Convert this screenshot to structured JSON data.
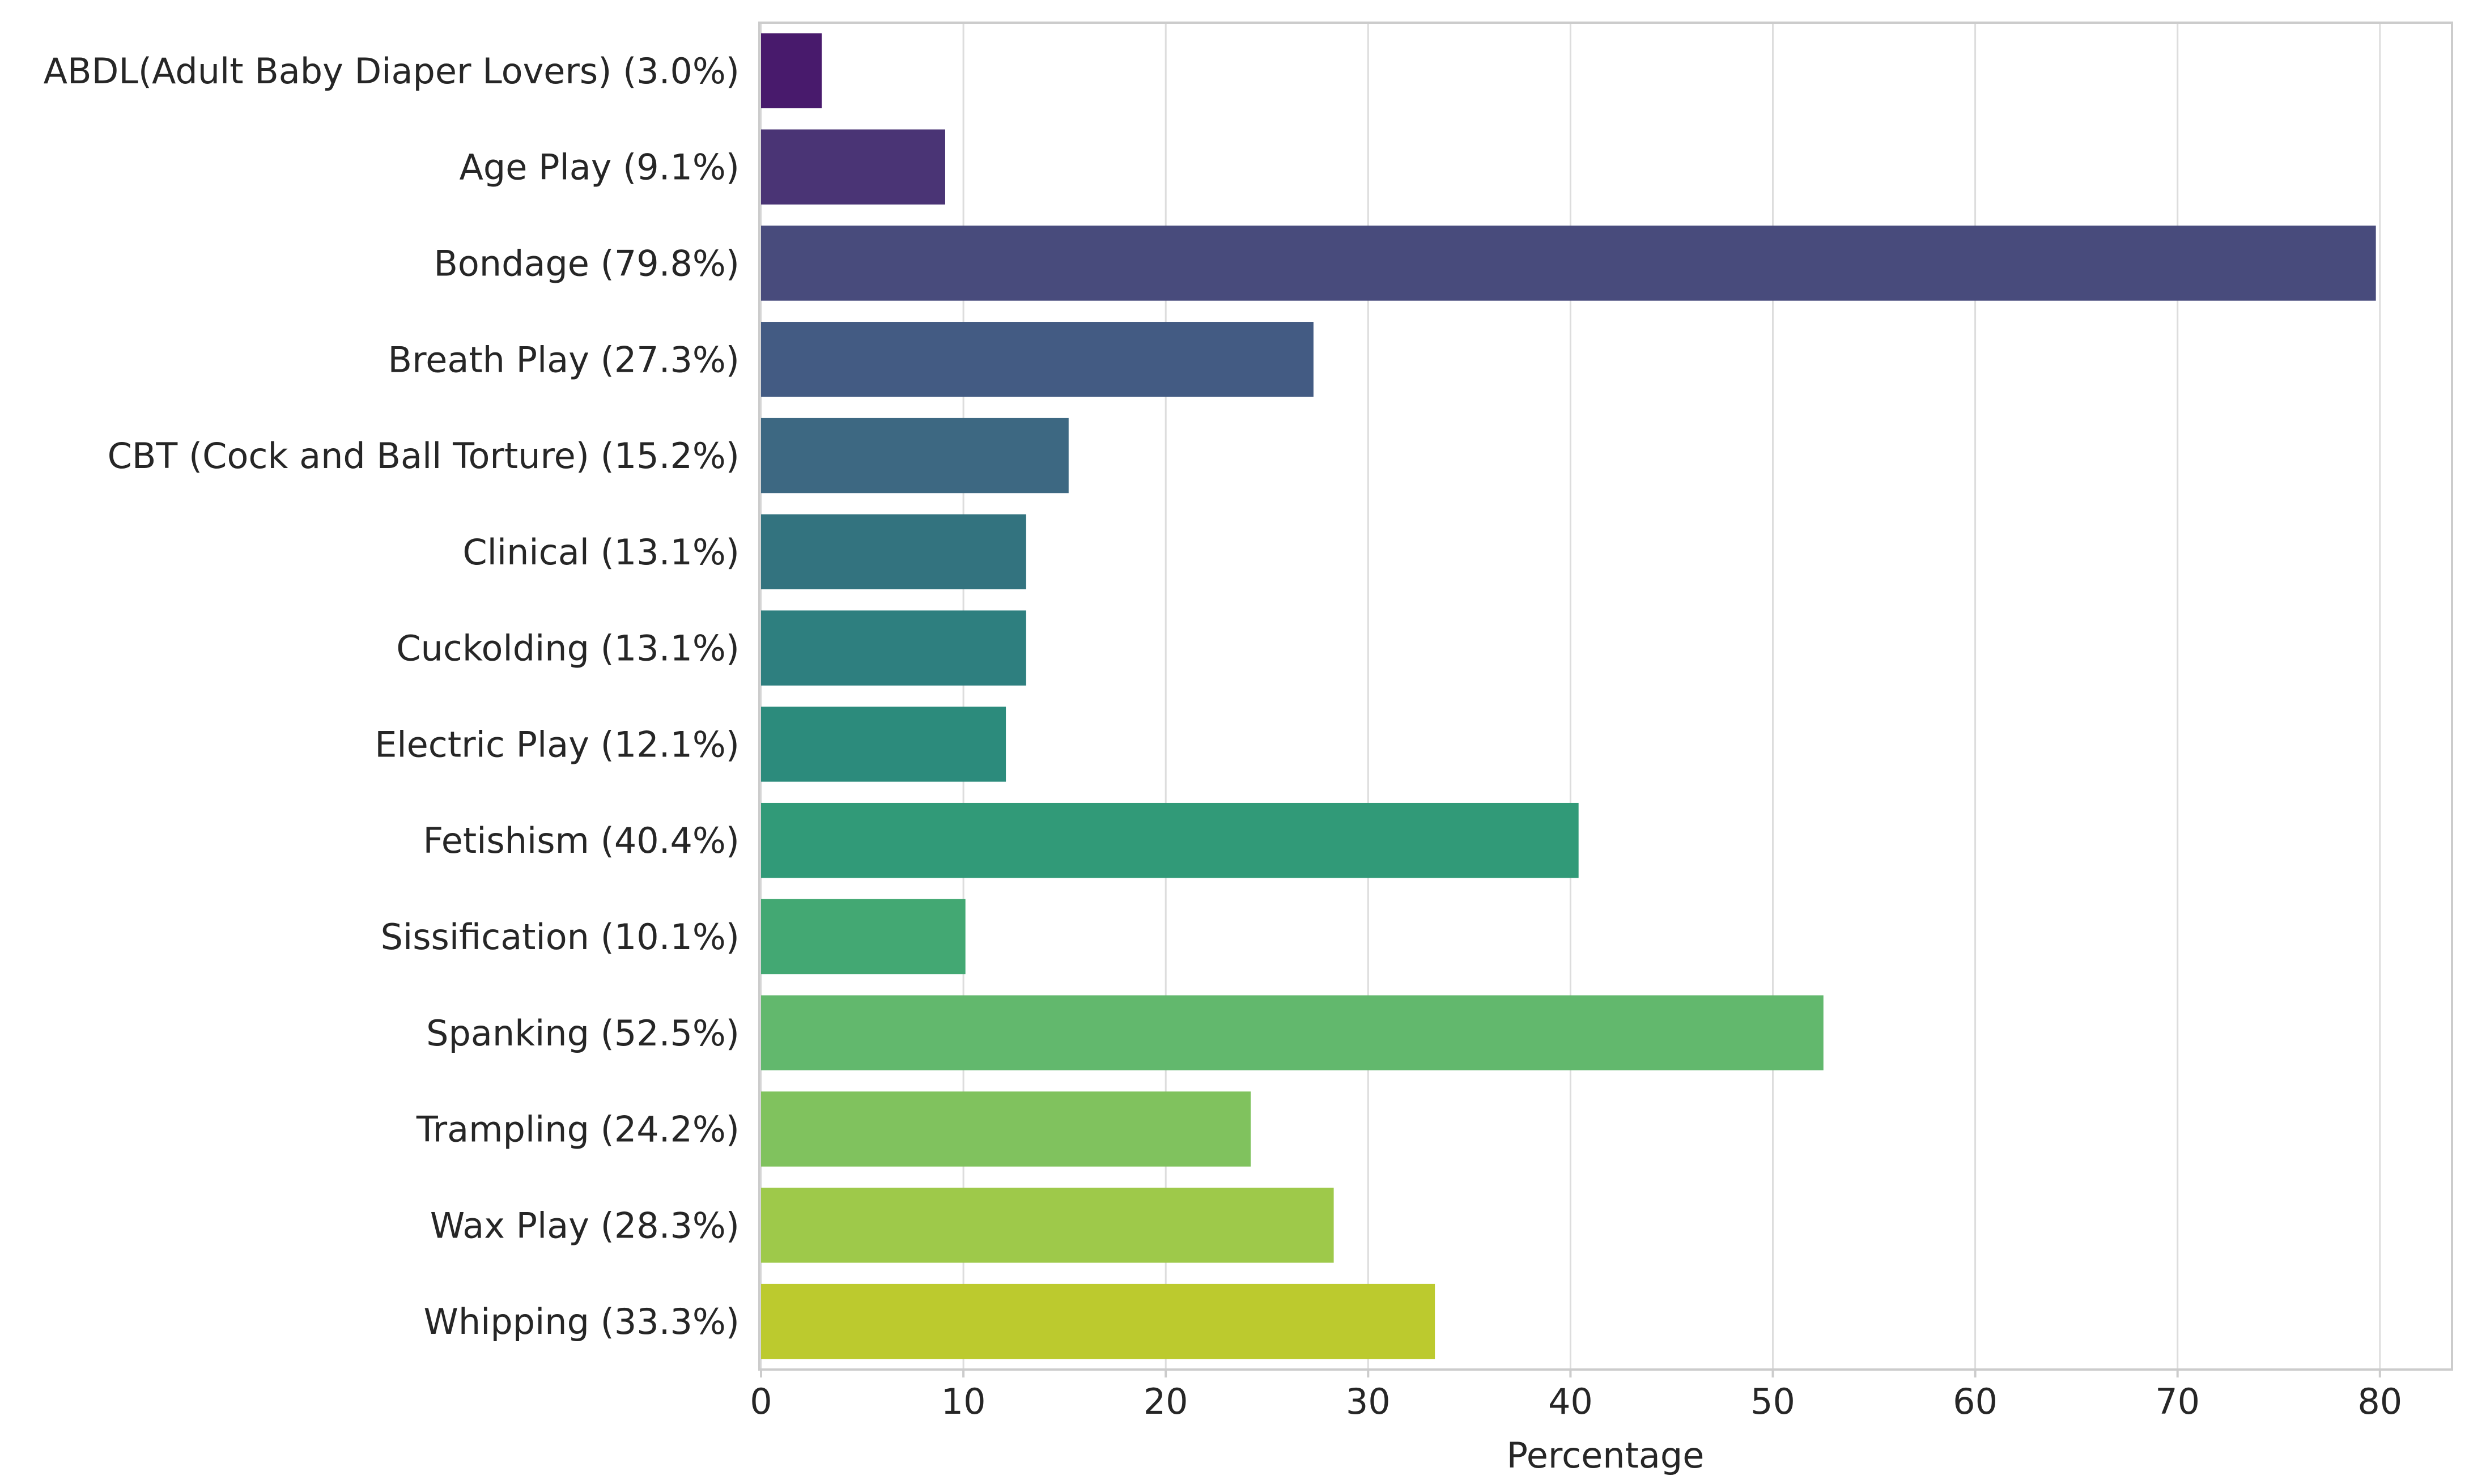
{
  "chart_data": {
    "type": "bar",
    "orientation": "horizontal",
    "title": "",
    "xlabel": "Percentage",
    "ylabel": "",
    "xlim": [
      0,
      84
    ],
    "xticks": [
      0,
      10,
      20,
      30,
      40,
      50,
      60,
      70,
      80
    ],
    "grid": "x",
    "categories": [
      "ABDL(Adult Baby Diaper Lovers) (3.0%)",
      "Age Play (9.1%)",
      "Bondage (79.8%)",
      "Breath Play (27.3%)",
      "CBT (Cock and Ball Torture) (15.2%)",
      "Clinical (13.1%)",
      "Cuckolding (13.1%)",
      "Electric Play (12.1%)",
      "Fetishism (40.4%)",
      "Sissification (10.1%)",
      "Spanking (52.5%)",
      "Trampling (24.2%)",
      "Wax Play (28.3%)",
      "Whipping (33.3%)"
    ],
    "values": [
      3.0,
      9.1,
      79.8,
      27.3,
      15.2,
      13.1,
      13.1,
      12.1,
      40.4,
      10.1,
      52.5,
      24.2,
      28.3,
      33.3
    ],
    "colors": [
      "#481a6c",
      "#4a3475",
      "#484b7c",
      "#435b83",
      "#3d6882",
      "#33737f",
      "#2e7f7f",
      "#2c8b7c",
      "#319a78",
      "#43a873",
      "#62b86d",
      "#80c25e",
      "#9ec94a",
      "#bcca2e"
    ]
  }
}
